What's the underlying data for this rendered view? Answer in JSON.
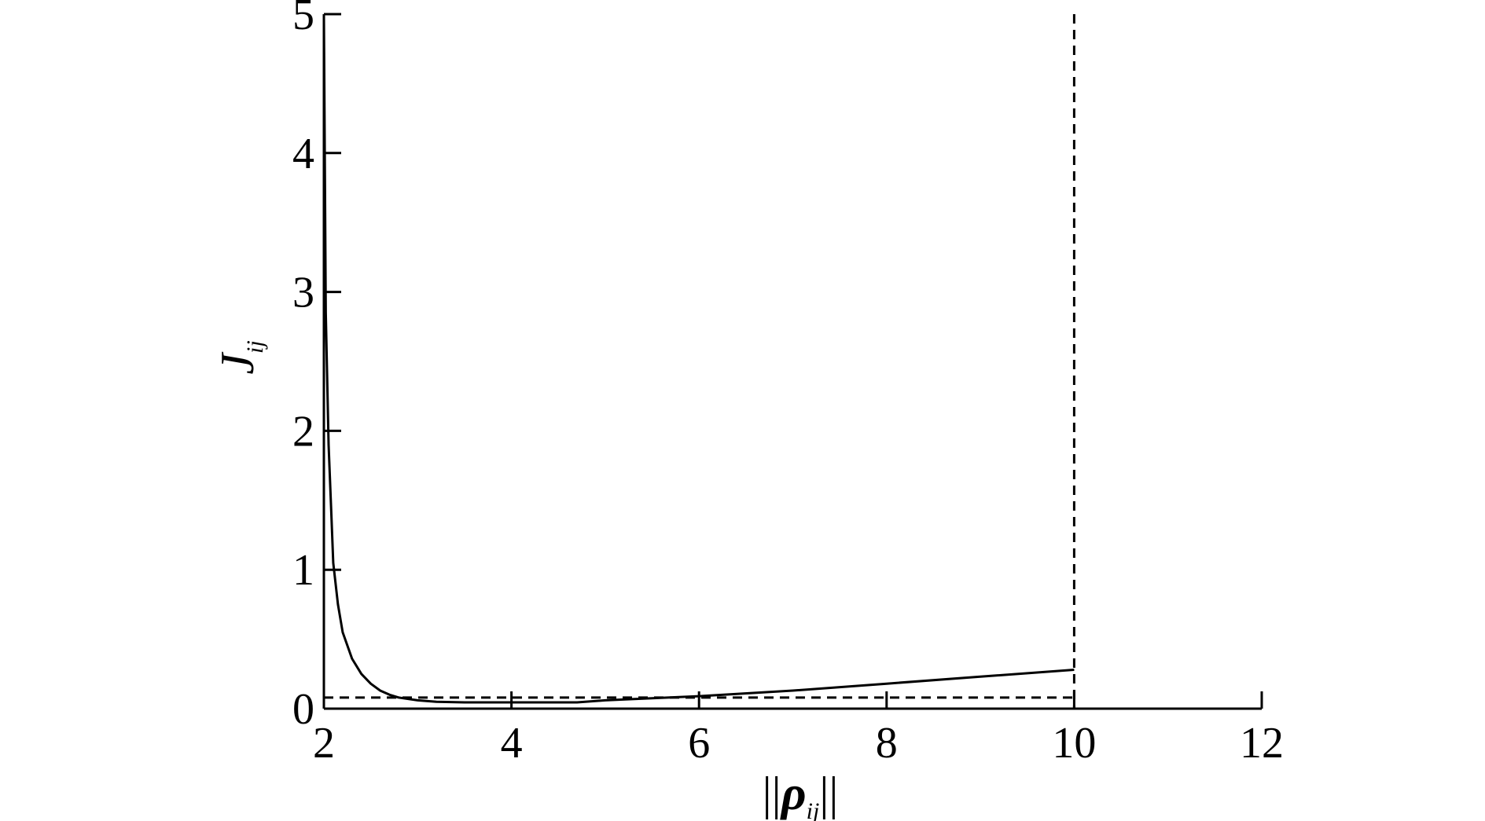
{
  "chart_data": {
    "type": "line",
    "xlabel": {
      "norm": "||",
      "symbol": "ρ",
      "subscript": "ij"
    },
    "ylabel": {
      "symbol": "J",
      "subscript": "ij"
    },
    "xlim": [
      2,
      12
    ],
    "ylim": [
      0,
      5
    ],
    "x_ticks": [
      2,
      4,
      6,
      8,
      10,
      12
    ],
    "y_ticks": [
      0,
      1,
      2,
      3,
      4,
      5
    ],
    "series": [
      {
        "style": "solid",
        "color": "#000000",
        "x": [
          2.0,
          2.02,
          2.05,
          2.08,
          2.1,
          2.15,
          2.2,
          2.3,
          2.4,
          2.5,
          2.6,
          2.7,
          2.8,
          3.0,
          3.2,
          3.5,
          4.0,
          4.7,
          5.0,
          6.0,
          7.0,
          8.0,
          9.0,
          10.0
        ],
        "y": [
          5.0,
          2.85,
          1.9,
          1.4,
          1.05,
          0.75,
          0.55,
          0.36,
          0.25,
          0.18,
          0.13,
          0.1,
          0.08,
          0.06,
          0.05,
          0.045,
          0.045,
          0.045,
          0.06,
          0.09,
          0.13,
          0.18,
          0.23,
          0.28
        ]
      },
      {
        "style": "dashed",
        "color": "#000000",
        "x": [
          2.0,
          10.0
        ],
        "y": [
          0.08,
          0.08
        ]
      }
    ],
    "reference_lines": [
      {
        "orientation": "vertical",
        "x": 10,
        "style": "dashed",
        "color": "#000000"
      }
    ],
    "grid": false,
    "legend": "none"
  }
}
